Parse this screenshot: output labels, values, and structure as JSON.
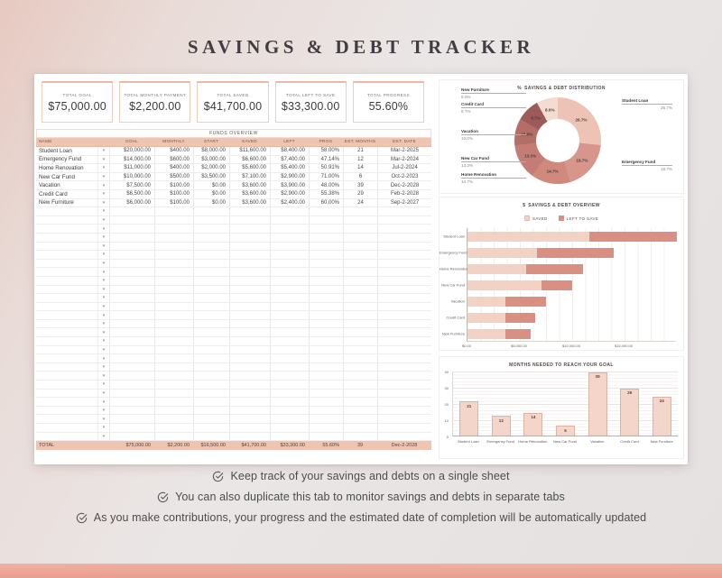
{
  "page_title": "SAVINGS & DEBT TRACKER",
  "summary_cards": [
    {
      "label": "TOTAL GOAL",
      "value": "$75,000.00"
    },
    {
      "label": "TOTAL MONTHLY PAYMENT",
      "value": "$2,200.00"
    },
    {
      "label": "TOTAL SAVED",
      "value": "$41,700.00"
    },
    {
      "label": "TOTAL LEFT TO SAVE",
      "value": "$33,300.00"
    },
    {
      "label": "TOTAL PROGRESS",
      "value": "55.60%"
    }
  ],
  "table": {
    "title": "FUNDS OVERVIEW",
    "row_dropdown_glyph": "▾",
    "columns": [
      "NAME",
      "GOAL",
      "MONTHLY",
      "START",
      "SAVED",
      "LEFT",
      "PROG",
      "EST. MONTHS",
      "EST. DATE"
    ],
    "rows": [
      [
        "Student Loan",
        "$20,000.00",
        "$400.00",
        "$8,000.00",
        "$11,600.00",
        "$8,400.00",
        "58.00%",
        "21",
        "Mar-2-2025"
      ],
      [
        "Emergency Fund",
        "$14,000.00",
        "$600.00",
        "$3,000.00",
        "$6,600.00",
        "$7,400.00",
        "47.14%",
        "12",
        "Mar-2-2024"
      ],
      [
        "Home Renovation",
        "$11,000.00",
        "$400.00",
        "$2,000.00",
        "$5,600.00",
        "$5,400.00",
        "50.91%",
        "14",
        "Jul-2-2024"
      ],
      [
        "New Car Fund",
        "$10,000.00",
        "$500.00",
        "$3,500.00",
        "$7,100.00",
        "$2,900.00",
        "71.00%",
        "6",
        "Oct-2-2023"
      ],
      [
        "Vacation",
        "$7,500.00",
        "$100.00",
        "$0.00",
        "$3,600.00",
        "$3,900.00",
        "48.00%",
        "39",
        "Dec-2-2028"
      ],
      [
        "Credit Card",
        "$6,500.00",
        "$100.00",
        "$0.00",
        "$3,600.00",
        "$2,900.00",
        "55.38%",
        "29",
        "Feb-2-2028"
      ],
      [
        "New Furniture",
        "$6,000.00",
        "$100.00",
        "$0.00",
        "$3,600.00",
        "$2,400.00",
        "60.00%",
        "24",
        "Sep-2-2027"
      ]
    ],
    "empty_row_count": 27,
    "total_row": [
      "TOTAL",
      "$75,000.00",
      "$2,200.00",
      "$16,500.00",
      "$41,700.00",
      "$33,300.00",
      "55.60%",
      "39",
      "Dec-2-2028"
    ]
  },
  "chart_data": [
    {
      "type": "pie",
      "donut": true,
      "icon_glyph": "%",
      "title": "SAVINGS & DEBT DISTRIBUTION",
      "labels": [
        "Student Loan",
        "Emergency Fund",
        "Home Renovation",
        "New Car Fund",
        "Vacation",
        "Credit Card",
        "New Furniture"
      ],
      "values_pct": [
        26.7,
        18.7,
        14.7,
        13.3,
        10.0,
        8.7,
        8.0
      ],
      "slice_labels": [
        "26.7%",
        "18.7%",
        "14.7%",
        "13.3%",
        "10.0%",
        "8.7%",
        "8.0%"
      ],
      "colors": [
        "#ecc3b4",
        "#d6968b",
        "#cf897d",
        "#c47d74",
        "#b26e67",
        "#9c5a58",
        "#f3dcd2"
      ],
      "legend_position": "outside-callouts"
    },
    {
      "type": "bar",
      "orientation": "horizontal",
      "stacked": true,
      "icon_glyph": "$",
      "title": "SAVINGS & DEBT OVERVIEW",
      "categories": [
        "Student Loan",
        "Emergency Fund",
        "Home Renovation",
        "New Car Fund",
        "Vacation",
        "Credit Card",
        "New Furniture"
      ],
      "series": [
        {
          "name": "SAVED",
          "color": "#f2d2c4",
          "values": [
            11600,
            6600,
            5600,
            7100,
            3600,
            3600,
            3600
          ]
        },
        {
          "name": "LEFT TO SAVE",
          "color": "#d99083",
          "values": [
            8400,
            7400,
            5400,
            2900,
            3900,
            2900,
            2400
          ]
        }
      ],
      "x_ticks": [
        "$0.00",
        "$5,000.00",
        "$10,000.00",
        "$15,000.00"
      ],
      "xlim": [
        0,
        20000
      ],
      "grid": true,
      "legend_position": "top"
    },
    {
      "type": "bar",
      "orientation": "vertical",
      "title": "MONTHS NEEDED TO REACH YOUR GOAL",
      "categories": [
        "Student Loan",
        "Emergency Fund",
        "Home Renovation",
        "New Car Fund",
        "Vacation",
        "Credit Card",
        "New Furniture"
      ],
      "values": [
        21,
        12,
        14,
        6,
        39,
        29,
        24
      ],
      "y_ticks": [
        0,
        10,
        20,
        30,
        40
      ],
      "ylim": [
        0,
        40
      ],
      "bar_color": "#f3d6c9",
      "grid": true
    }
  ],
  "notes": {
    "icon": "check-circle-icon",
    "items": [
      "Keep track of your savings and debts on a single sheet",
      "You can also duplicate this tab to monitor savings and debts in separate tabs",
      "As you make contributions, your progress and the estimated date of completion will be automatically updated"
    ]
  }
}
